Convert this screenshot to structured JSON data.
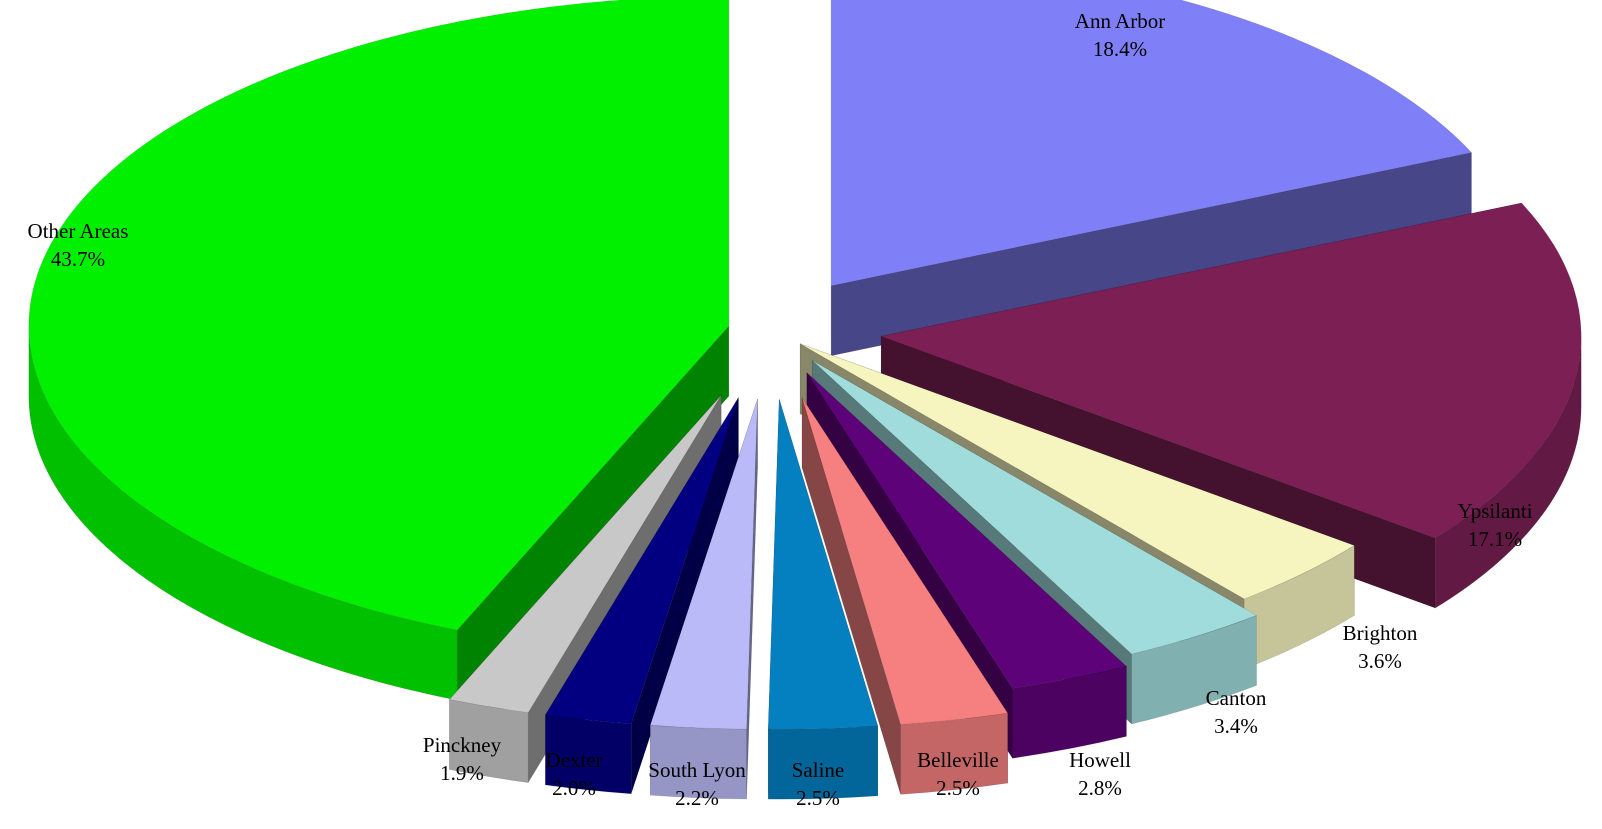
{
  "chart_data": {
    "type": "pie",
    "title": "",
    "style": "3d-exploded",
    "labels_position": "outside",
    "slices": [
      {
        "label": "Ann Arbor",
        "value": 18.4,
        "display": "18.4%",
        "color": "#7f7ff7"
      },
      {
        "label": "Ypsilanti",
        "value": 17.1,
        "display": "17.1%",
        "color": "#7b1f55"
      },
      {
        "label": "Brighton",
        "value": 3.6,
        "display": "3.6%",
        "color": "#f7f5bf"
      },
      {
        "label": "Canton",
        "value": 3.4,
        "display": "3.4%",
        "color": "#a0dcdc"
      },
      {
        "label": "Howell",
        "value": 2.8,
        "display": "2.8%",
        "color": "#5e0279"
      },
      {
        "label": "Belleville",
        "value": 2.5,
        "display": "2.5%",
        "color": "#f68080"
      },
      {
        "label": "Saline",
        "value": 2.5,
        "display": "2.5%",
        "color": "#0480c0"
      },
      {
        "label": "South Lyon",
        "value": 2.2,
        "display": "2.2%",
        "color": "#babaf8"
      },
      {
        "label": "Dexter",
        "value": 2.0,
        "display": "2.0%",
        "color": "#020080"
      },
      {
        "label": "Pinckney",
        "value": 1.9,
        "display": "1.9%",
        "color": "#c8c8c8"
      },
      {
        "label": "Other Areas",
        "value": 43.7,
        "display": "43.7%",
        "color": "#00f000"
      }
    ]
  }
}
